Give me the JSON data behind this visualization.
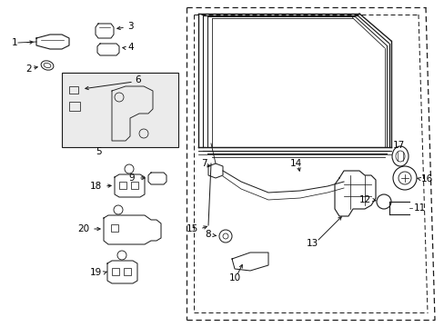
{
  "bg_color": "#ffffff",
  "fig_width": 4.89,
  "fig_height": 3.6,
  "dpi": 100,
  "line_color": "#1a1a1a",
  "text_color": "#000000",
  "font_size": 7.5,
  "line_width": 0.9
}
